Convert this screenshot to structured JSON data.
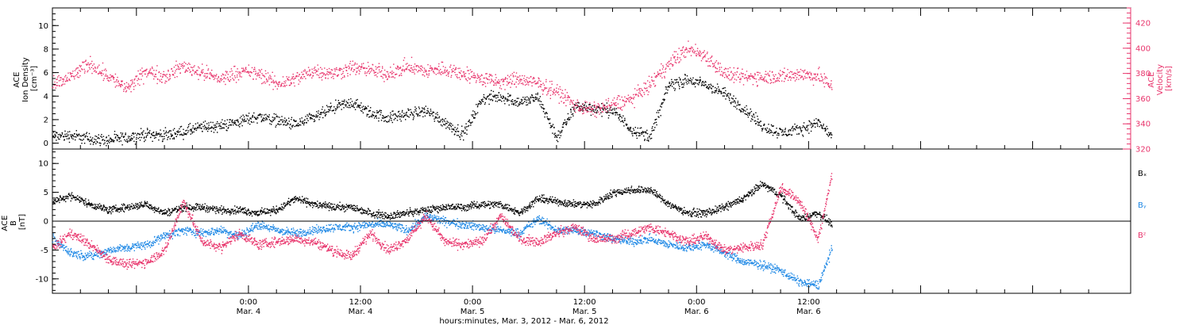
{
  "colors": {
    "black": "#000000",
    "pink": "#e8336b",
    "blue": "#1e88e5"
  },
  "x_axis": {
    "title": "hours:minutes, Mar.  3, 2012 - Mar.  6, 2012",
    "range_hours": [
      -21,
      94.5
    ],
    "ticks": [
      {
        "hour": 0,
        "time": "0:00",
        "date": "Mar. 4"
      },
      {
        "hour": 12,
        "time": "12:00",
        "date": "Mar. 4"
      },
      {
        "hour": 24,
        "time": "0:00",
        "date": "Mar. 5"
      },
      {
        "hour": 36,
        "time": "12:00",
        "date": "Mar. 5"
      },
      {
        "hour": 48,
        "time": "0:00",
        "date": "Mar. 6"
      },
      {
        "hour": 60,
        "time": "12:00",
        "date": "Mar. 6"
      }
    ]
  },
  "chart_data": [
    {
      "type": "scatter",
      "panel": "top",
      "ylabel_left": [
        "ACE",
        "Ion Density",
        "[cm⁻³]"
      ],
      "ylabel_right": [
        "ACE",
        "Velocity",
        "[km/s]"
      ],
      "ylim_left": [
        -0.5,
        11.5
      ],
      "yticks_left": [
        "0",
        "2",
        "4",
        "6",
        "8",
        "10"
      ],
      "ylim_right": [
        320,
        432
      ],
      "yticks_right": [
        "320",
        "340",
        "360",
        "380",
        "400",
        "420"
      ],
      "series": [
        {
          "color": "#000000",
          "axis": "left",
          "x": [
            -21,
            -19,
            -17,
            -15,
            -13,
            -11,
            -9,
            -7,
            -5,
            -3,
            -1,
            1,
            3,
            5,
            7,
            9,
            11,
            13,
            15,
            17,
            19,
            21,
            23,
            25,
            27,
            29,
            31,
            33,
            35,
            37,
            39,
            41,
            43,
            45,
            47,
            49,
            51,
            53,
            55,
            57,
            59,
            61,
            62.5
          ],
          "y": [
            0.6,
            0.7,
            0.4,
            0.3,
            0.5,
            0.8,
            0.7,
            1.0,
            1.4,
            1.5,
            1.9,
            2.3,
            2.0,
            1.6,
            2.2,
            3.0,
            3.5,
            2.6,
            2.2,
            2.5,
            2.8,
            1.8,
            0.8,
            3.8,
            4.0,
            3.5,
            3.9,
            0.5,
            3.2,
            3.0,
            2.8,
            1.2,
            0.6,
            5.0,
            5.4,
            5.0,
            4.2,
            3.0,
            1.5,
            0.9,
            1.2,
            1.8,
            0.6
          ]
        },
        {
          "color": "#e8336b",
          "axis": "right",
          "x": [
            -21,
            -19,
            -17,
            -15,
            -13,
            -11,
            -9,
            -7,
            -5,
            -3,
            -1,
            1,
            3,
            5,
            7,
            9,
            11,
            13,
            15,
            17,
            19,
            21,
            23,
            25,
            27,
            29,
            31,
            33,
            35,
            37,
            39,
            41,
            43,
            45,
            47,
            49,
            51,
            53,
            55,
            57,
            59,
            61,
            62.5
          ],
          "y": [
            370,
            378,
            388,
            378,
            368,
            382,
            378,
            386,
            381,
            376,
            382,
            380,
            372,
            376,
            383,
            380,
            385,
            383,
            380,
            386,
            382,
            384,
            380,
            376,
            373,
            376,
            372,
            366,
            355,
            351,
            356,
            360,
            372,
            388,
            400,
            394,
            380,
            377,
            378,
            378,
            380,
            378,
            370
          ]
        }
      ]
    },
    {
      "type": "scatter",
      "panel": "bottom",
      "ylabel": [
        "ACE",
        "B",
        "[nT]"
      ],
      "ylim": [
        -12.5,
        12.5
      ],
      "yticks": [
        "-10",
        "-5",
        "0",
        "5",
        "10"
      ],
      "zero_line": true,
      "series": [
        {
          "name": "Bₓ",
          "color": "#000000",
          "x": [
            -21,
            -19,
            -17,
            -15,
            -13,
            -11,
            -9,
            -7,
            -5,
            -3,
            -1,
            1,
            3,
            5,
            7,
            9,
            11,
            13,
            15,
            17,
            19,
            21,
            23,
            25,
            27,
            29,
            31,
            33,
            35,
            37,
            39,
            41,
            43,
            45,
            47,
            49,
            51,
            53,
            55,
            57,
            59,
            61,
            62.5
          ],
          "y": [
            3.5,
            4.5,
            3.0,
            2.0,
            2.5,
            3.0,
            1.5,
            2.5,
            2.5,
            2.0,
            2.0,
            1.5,
            2.0,
            4.0,
            3.0,
            2.5,
            2.5,
            1.5,
            1.0,
            1.5,
            2.0,
            2.5,
            2.5,
            3.0,
            3.0,
            1.5,
            4.0,
            3.5,
            3.0,
            3.0,
            5.0,
            5.5,
            5.5,
            3.0,
            1.5,
            1.5,
            2.5,
            4.0,
            6.5,
            4.5,
            0.5,
            1.5,
            -0.5
          ]
        },
        {
          "name": "Bᵧ",
          "color": "#1e88e5",
          "x": [
            -21,
            -19,
            -17,
            -15,
            -13,
            -11,
            -9,
            -7,
            -5,
            -3,
            -1,
            1,
            3,
            5,
            7,
            9,
            11,
            13,
            15,
            17,
            19,
            21,
            23,
            25,
            27,
            29,
            31,
            33,
            35,
            37,
            39,
            41,
            43,
            45,
            47,
            49,
            51,
            53,
            55,
            57,
            59,
            61,
            62.5
          ],
          "y": [
            -3.0,
            -5.5,
            -6.0,
            -5.0,
            -4.5,
            -4.0,
            -2.5,
            -1.5,
            -2.0,
            -1.5,
            -2.5,
            -0.5,
            -1.5,
            -2.0,
            -1.5,
            -1.0,
            -1.0,
            -0.5,
            -0.5,
            -1.5,
            1.0,
            0.0,
            -0.5,
            -1.0,
            -1.5,
            -2.0,
            0.5,
            -1.5,
            -1.5,
            -2.0,
            -3.0,
            -3.5,
            -3.0,
            -4.0,
            -4.5,
            -4.0,
            -5.5,
            -7.0,
            -7.5,
            -8.5,
            -10.5,
            -11.0,
            -4.5
          ]
        },
        {
          "name": "Bᶻ",
          "color": "#e8336b",
          "x": [
            -21,
            -19,
            -17,
            -15,
            -13,
            -11,
            -9,
            -7,
            -5,
            -3,
            -1,
            1,
            3,
            5,
            7,
            9,
            11,
            13,
            15,
            17,
            19,
            21,
            23,
            25,
            27,
            29,
            31,
            33,
            35,
            37,
            39,
            41,
            43,
            45,
            47,
            49,
            51,
            53,
            55,
            57,
            59,
            61,
            62.5
          ],
          "y": [
            -4.5,
            -2.0,
            -4.0,
            -6.5,
            -7.5,
            -7.0,
            -5.0,
            3.5,
            -3.5,
            -4.5,
            -2.0,
            -4.0,
            -3.5,
            -3.0,
            -3.5,
            -5.0,
            -6.0,
            -2.0,
            -5.0,
            -3.0,
            1.0,
            -3.5,
            -4.0,
            -3.5,
            1.0,
            -3.0,
            -3.5,
            -2.0,
            -1.0,
            -3.0,
            -3.0,
            -2.0,
            -1.0,
            -2.0,
            -3.5,
            -2.5,
            -5.0,
            -4.5,
            -4.0,
            6.0,
            3.5,
            -3.0,
            8.5
          ]
        }
      ]
    }
  ]
}
